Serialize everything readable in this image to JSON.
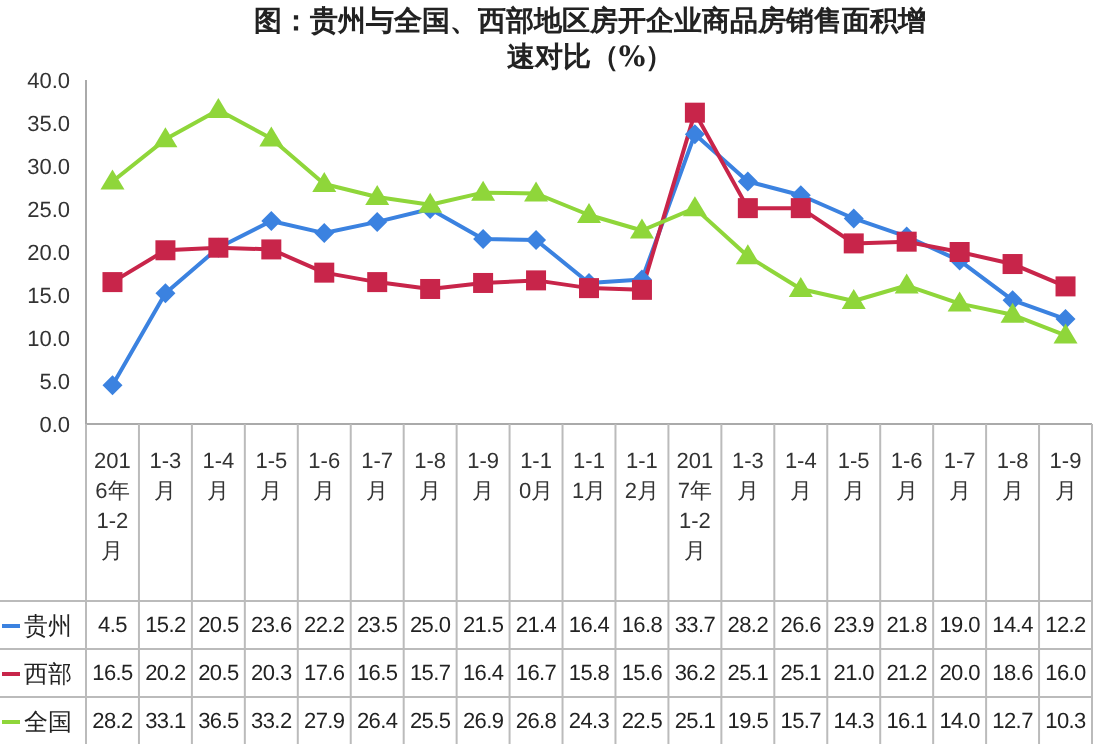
{
  "chart_data": {
    "type": "line",
    "title": "图：贵州与全国、西部地区房开企业商品房销售面积增速对比（%）",
    "categories": [
      "2016年1-2月",
      "1-3月",
      "1-4月",
      "1-5月",
      "1-6月",
      "1-7月",
      "1-8月",
      "1-9月",
      "1-10月",
      "1-11月",
      "1-12月",
      "2017年1-2月",
      "1-3月",
      "1-4月",
      "1-5月",
      "1-6月",
      "1-7月",
      "1-8月",
      "1-9月"
    ],
    "series": [
      {
        "name": "贵州",
        "color": "#3b82e0",
        "marker": "diamond",
        "values": [
          4.5,
          15.2,
          20.5,
          23.6,
          22.2,
          23.5,
          25.0,
          21.5,
          21.4,
          16.4,
          16.8,
          33.7,
          28.2,
          26.6,
          23.9,
          21.8,
          19.0,
          14.4,
          12.2
        ],
        "value_labels": [
          "4.5",
          "15.2",
          "20.5",
          "23.6",
          "22.2",
          "23.5",
          "25.0",
          "21.5",
          "21.4",
          "16.4",
          "16.8",
          "33.7",
          "28.2",
          "26.6",
          "23.9",
          "21.8",
          "19.0",
          "14.4",
          "12.2"
        ]
      },
      {
        "name": "西部",
        "color": "#c8254a",
        "marker": "square",
        "values": [
          16.5,
          20.2,
          20.5,
          20.3,
          17.6,
          16.5,
          15.7,
          16.4,
          16.7,
          15.8,
          15.6,
          36.2,
          25.1,
          25.1,
          21.0,
          21.2,
          20.0,
          18.6,
          16.0
        ],
        "value_labels": [
          "16.5",
          "20.2",
          "20.5",
          "20.3",
          "17.6",
          "16.5",
          "15.7",
          "16.4",
          "16.7",
          "15.8",
          "15.6",
          "36.2",
          "25.1",
          "25.1",
          "21.0",
          "21.2",
          "20.0",
          "18.6",
          "16.0"
        ]
      },
      {
        "name": "全国",
        "color": "#8fd63a",
        "marker": "triangle",
        "values": [
          28.2,
          33.1,
          36.5,
          33.2,
          27.9,
          26.4,
          25.5,
          26.9,
          26.8,
          24.3,
          22.5,
          25.1,
          19.5,
          15.7,
          14.3,
          16.1,
          14.0,
          12.7,
          10.3
        ],
        "value_labels": [
          "28.2",
          "33.1",
          "36.5",
          "33.2",
          "27.9",
          "26.4",
          "25.5",
          "26.9",
          "26.8",
          "24.3",
          "22.5",
          "25.1",
          "19.5",
          "15.7",
          "14.3",
          "16.1",
          "14.0",
          "12.7",
          "10.3"
        ]
      }
    ],
    "ylim": [
      0,
      40
    ],
    "yticks": [
      {
        "value": 0,
        "label": "0.0"
      },
      {
        "value": 5,
        "label": "5.0"
      },
      {
        "value": 10,
        "label": "10.0"
      },
      {
        "value": 15,
        "label": "15.0"
      },
      {
        "value": 20,
        "label": "20.0"
      },
      {
        "value": 25,
        "label": "25.0"
      },
      {
        "value": 30,
        "label": "30.0"
      },
      {
        "value": 35,
        "label": "35.0"
      },
      {
        "value": 40,
        "label": "40.0"
      }
    ],
    "grid": false,
    "legend": "bottom"
  }
}
